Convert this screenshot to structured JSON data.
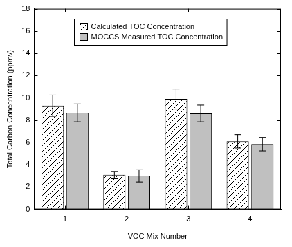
{
  "chart_data": {
    "type": "bar",
    "categories": [
      "1",
      "2",
      "3",
      "4"
    ],
    "x_label": "VOC Mix Number",
    "y_label": "Total Carbon Concentration (ppmv)",
    "series": [
      {
        "name": "Calculated TOC Concentration",
        "color": "#ffffff",
        "values": [
          9.3,
          3.1,
          9.9,
          6.1
        ],
        "errors": [
          0.95,
          0.3,
          0.9,
          0.6
        ]
      },
      {
        "name": "MOCCS Measured TOC Concentration",
        "color": "#c0c0c0",
        "values": [
          8.65,
          3.0,
          8.6,
          5.85
        ],
        "errors": [
          0.8,
          0.55,
          0.75,
          0.6
        ]
      }
    ],
    "ylim": [
      0,
      18
    ],
    "yticks": [
      0,
      2,
      4,
      6,
      8,
      10,
      12,
      14,
      16,
      18
    ],
    "grid": false,
    "legend": "top"
  }
}
